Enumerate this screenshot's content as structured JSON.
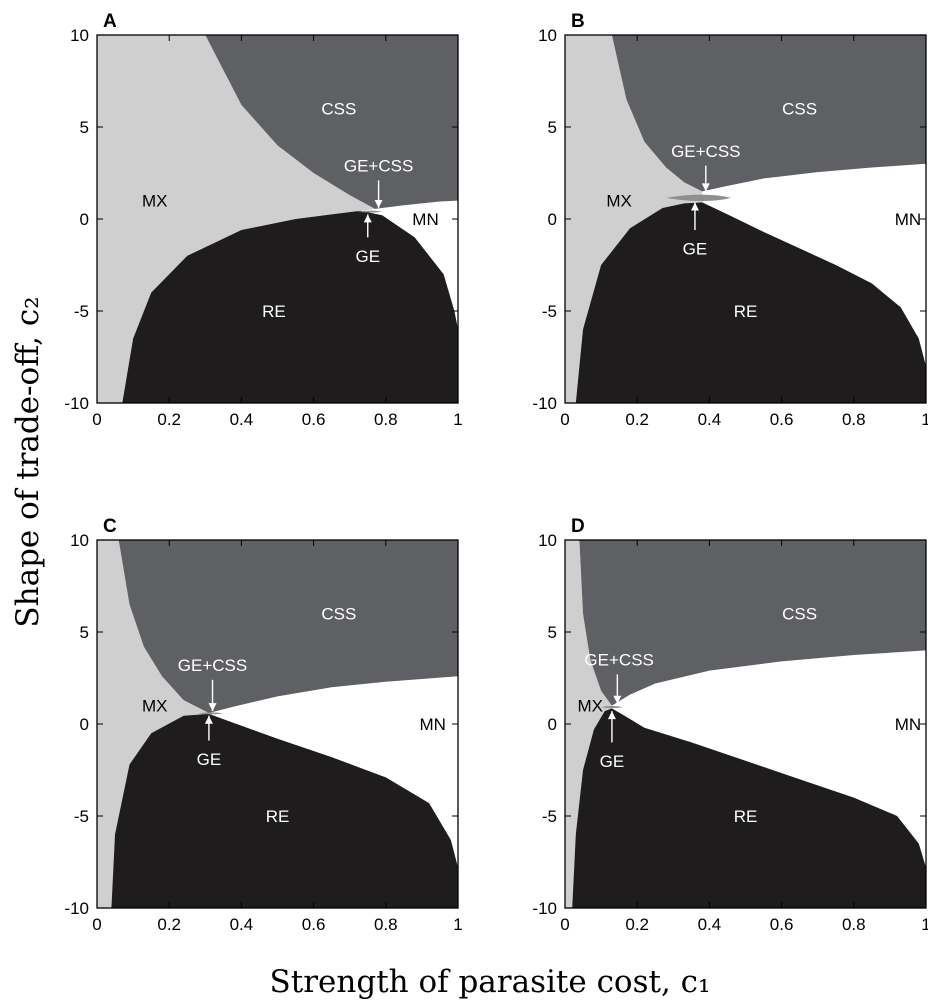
{
  "figure": {
    "ylabel": "Shape of trade-off, c₂",
    "xlabel": "Strength of parasite cost, c₁"
  },
  "colors": {
    "RE": "#1e1c1d",
    "CSS": "#5f6063",
    "MX": "#cfcfd0",
    "MN": "#ffffff",
    "GE": "#8e8f91",
    "label_on_dark": "#ffffff",
    "label_on_light": "#000000"
  },
  "chart_data": [
    {
      "panel": "A",
      "type": "area",
      "xlim": [
        0,
        1
      ],
      "ylim": [
        -10,
        10
      ],
      "xticks": [
        "0",
        "0.2",
        "0.4",
        "0.6",
        "0.8",
        "1"
      ],
      "yticks": [
        "10",
        "5",
        "0",
        "-5",
        "-10"
      ],
      "regions": [
        {
          "name": "MX",
          "label": "MX",
          "x": 0.16,
          "y": 1.0
        },
        {
          "name": "CSS",
          "label": "CSS",
          "x": 0.67,
          "y": 6.0
        },
        {
          "name": "MN",
          "label": "MN",
          "x": 0.91,
          "y": 0.0
        },
        {
          "name": "RE",
          "label": "RE",
          "x": 0.49,
          "y": -5.0
        }
      ],
      "boundaries": {
        "upper": [
          [
            0.3,
            10
          ],
          [
            0.4,
            6.2
          ],
          [
            0.5,
            4.0
          ],
          [
            0.6,
            2.5
          ],
          [
            0.7,
            1.3
          ],
          [
            0.77,
            0.55
          ],
          [
            0.85,
            0.75
          ],
          [
            0.95,
            0.95
          ],
          [
            1.0,
            1.0
          ]
        ],
        "lower": [
          [
            0.07,
            -10
          ],
          [
            0.1,
            -6.5
          ],
          [
            0.15,
            -4.0
          ],
          [
            0.25,
            -2.0
          ],
          [
            0.4,
            -0.6
          ],
          [
            0.55,
            0.0
          ],
          [
            0.65,
            0.25
          ],
          [
            0.73,
            0.45
          ],
          [
            0.79,
            0.2
          ],
          [
            0.88,
            -1.0
          ],
          [
            0.96,
            -3.0
          ],
          [
            0.99,
            -5.0
          ],
          [
            1.0,
            -6.0
          ]
        ],
        "re_bottom_end": 1.0
      },
      "ge": {
        "x0": 0.72,
        "x1": 0.79,
        "x": 0.76,
        "y": 0.4,
        "height": 0.08
      },
      "annotations": [
        {
          "text": "GE+CSS",
          "tx": 0.78,
          "ty": 2.9,
          "ax": 0.78,
          "ay0": 2.1,
          "ay1": 0.6,
          "dir": "down"
        },
        {
          "text": "GE",
          "tx": 0.75,
          "ty": -2.0,
          "ax": 0.75,
          "ay0": -1.0,
          "ay1": 0.25,
          "dir": "up"
        }
      ]
    },
    {
      "panel": "B",
      "type": "area",
      "xlim": [
        0,
        1
      ],
      "ylim": [
        -10,
        10
      ],
      "xticks": [
        "0",
        "0.2",
        "0.4",
        "0.6",
        "0.8",
        "1"
      ],
      "yticks": [
        "10",
        "5",
        "0",
        "-5",
        "-10"
      ],
      "regions": [
        {
          "name": "MX",
          "label": "MX",
          "x": 0.15,
          "y": 1.0
        },
        {
          "name": "CSS",
          "label": "CSS",
          "x": 0.65,
          "y": 6.0
        },
        {
          "name": "MN",
          "label": "MN",
          "x": 0.95,
          "y": 0.0
        },
        {
          "name": "RE",
          "label": "RE",
          "x": 0.5,
          "y": -5.0
        }
      ],
      "boundaries": {
        "upper": [
          [
            0.13,
            10
          ],
          [
            0.17,
            6.5
          ],
          [
            0.22,
            4.2
          ],
          [
            0.28,
            2.8
          ],
          [
            0.33,
            2.0
          ],
          [
            0.38,
            1.5
          ],
          [
            0.45,
            1.8
          ],
          [
            0.55,
            2.2
          ],
          [
            0.7,
            2.55
          ],
          [
            0.85,
            2.8
          ],
          [
            1.0,
            3.0
          ]
        ],
        "lower": [
          [
            0.03,
            -10
          ],
          [
            0.05,
            -6.0
          ],
          [
            0.1,
            -2.5
          ],
          [
            0.18,
            -0.5
          ],
          [
            0.27,
            0.6
          ],
          [
            0.33,
            0.85
          ],
          [
            0.38,
            0.9
          ],
          [
            0.45,
            0.25
          ],
          [
            0.55,
            -0.7
          ],
          [
            0.65,
            -1.6
          ],
          [
            0.75,
            -2.5
          ],
          [
            0.85,
            -3.5
          ],
          [
            0.93,
            -4.8
          ],
          [
            0.98,
            -6.5
          ],
          [
            1.0,
            -8.0
          ]
        ],
        "re_bottom_end": 1.0
      },
      "ge": {
        "x0": 0.28,
        "x1": 0.46,
        "x": 0.385,
        "y": 1.15,
        "height": 0.35
      },
      "annotations": [
        {
          "text": "GE+CSS",
          "tx": 0.39,
          "ty": 3.7,
          "ax": 0.39,
          "ay0": 2.9,
          "ay1": 1.5,
          "dir": "down"
        },
        {
          "text": "GE",
          "tx": 0.36,
          "ty": -1.6,
          "ax": 0.36,
          "ay0": -0.6,
          "ay1": 0.9,
          "dir": "up"
        }
      ]
    },
    {
      "panel": "C",
      "type": "area",
      "xlim": [
        0,
        1
      ],
      "ylim": [
        -10,
        10
      ],
      "xticks": [
        "0",
        "0.2",
        "0.4",
        "0.6",
        "0.8",
        "1"
      ],
      "yticks": [
        "10",
        "5",
        "0",
        "-5",
        "-10"
      ],
      "regions": [
        {
          "name": "MX",
          "label": "MX",
          "x": 0.16,
          "y": 1.0
        },
        {
          "name": "CSS",
          "label": "CSS",
          "x": 0.67,
          "y": 6.0
        },
        {
          "name": "MN",
          "label": "MN",
          "x": 0.93,
          "y": 0.0
        },
        {
          "name": "RE",
          "label": "RE",
          "x": 0.5,
          "y": -5.0
        }
      ],
      "boundaries": {
        "upper": [
          [
            0.06,
            10
          ],
          [
            0.09,
            6.5
          ],
          [
            0.13,
            4.2
          ],
          [
            0.18,
            2.6
          ],
          [
            0.24,
            1.3
          ],
          [
            0.31,
            0.6
          ],
          [
            0.38,
            0.95
          ],
          [
            0.5,
            1.5
          ],
          [
            0.65,
            2.0
          ],
          [
            0.8,
            2.3
          ],
          [
            1.0,
            2.6
          ]
        ],
        "lower": [
          [
            0.04,
            -10
          ],
          [
            0.05,
            -6.0
          ],
          [
            0.09,
            -2.2
          ],
          [
            0.15,
            -0.5
          ],
          [
            0.24,
            0.45
          ],
          [
            0.31,
            0.55
          ],
          [
            0.38,
            0.05
          ],
          [
            0.5,
            -0.8
          ],
          [
            0.65,
            -1.8
          ],
          [
            0.8,
            -2.9
          ],
          [
            0.92,
            -4.3
          ],
          [
            0.98,
            -6.3
          ],
          [
            1.0,
            -7.8
          ]
        ],
        "re_bottom_end": 1.0
      },
      "ge": {
        "x0": 0.28,
        "x1": 0.35,
        "x": 0.315,
        "y": 0.58,
        "height": 0.1
      },
      "annotations": [
        {
          "text": "GE+CSS",
          "tx": 0.32,
          "ty": 3.2,
          "ax": 0.32,
          "ay0": 2.4,
          "ay1": 0.7,
          "dir": "down"
        },
        {
          "text": "GE",
          "tx": 0.31,
          "ty": -1.9,
          "ax": 0.31,
          "ay0": -0.9,
          "ay1": 0.45,
          "dir": "up"
        }
      ]
    },
    {
      "panel": "D",
      "type": "area",
      "xlim": [
        0,
        1
      ],
      "ylim": [
        -10,
        10
      ],
      "xticks": [
        "0",
        "0.2",
        "0.4",
        "0.6",
        "0.8",
        "1"
      ],
      "yticks": [
        "10",
        "5",
        "0",
        "-5",
        "-10"
      ],
      "regions": [
        {
          "name": "MX",
          "label": "MX",
          "x": 0.07,
          "y": 1.0
        },
        {
          "name": "CSS",
          "label": "CSS",
          "x": 0.65,
          "y": 6.0
        },
        {
          "name": "MN",
          "label": "MN",
          "x": 0.95,
          "y": 0.0
        },
        {
          "name": "RE",
          "label": "RE",
          "x": 0.5,
          "y": -5.0
        }
      ],
      "boundaries": {
        "upper": [
          [
            0.04,
            10
          ],
          [
            0.05,
            6.0
          ],
          [
            0.07,
            3.5
          ],
          [
            0.1,
            1.8
          ],
          [
            0.13,
            1.0
          ],
          [
            0.18,
            1.6
          ],
          [
            0.25,
            2.2
          ],
          [
            0.4,
            2.9
          ],
          [
            0.6,
            3.4
          ],
          [
            0.8,
            3.75
          ],
          [
            1.0,
            4.0
          ]
        ],
        "lower": [
          [
            0.02,
            -10
          ],
          [
            0.03,
            -6.0
          ],
          [
            0.05,
            -2.5
          ],
          [
            0.08,
            -0.3
          ],
          [
            0.11,
            0.7
          ],
          [
            0.13,
            0.85
          ],
          [
            0.16,
            0.5
          ],
          [
            0.22,
            -0.2
          ],
          [
            0.35,
            -1.0
          ],
          [
            0.5,
            -2.0
          ],
          [
            0.65,
            -3.0
          ],
          [
            0.8,
            -4.0
          ],
          [
            0.92,
            -5.0
          ],
          [
            0.98,
            -6.5
          ],
          [
            1.0,
            -7.8
          ]
        ],
        "re_bottom_end": 1.0
      },
      "ge": {
        "x0": 0.1,
        "x1": 0.16,
        "x": 0.13,
        "y": 0.92,
        "height": 0.12
      },
      "annotations": [
        {
          "text": "GE+CSS",
          "tx": 0.15,
          "ty": 3.5,
          "ax": 0.145,
          "ay0": 2.7,
          "ay1": 1.1,
          "dir": "down"
        },
        {
          "text": "GE",
          "tx": 0.13,
          "ty": -2.0,
          "ax": 0.13,
          "ay0": -1.0,
          "ay1": 0.7,
          "dir": "up"
        }
      ]
    }
  ]
}
